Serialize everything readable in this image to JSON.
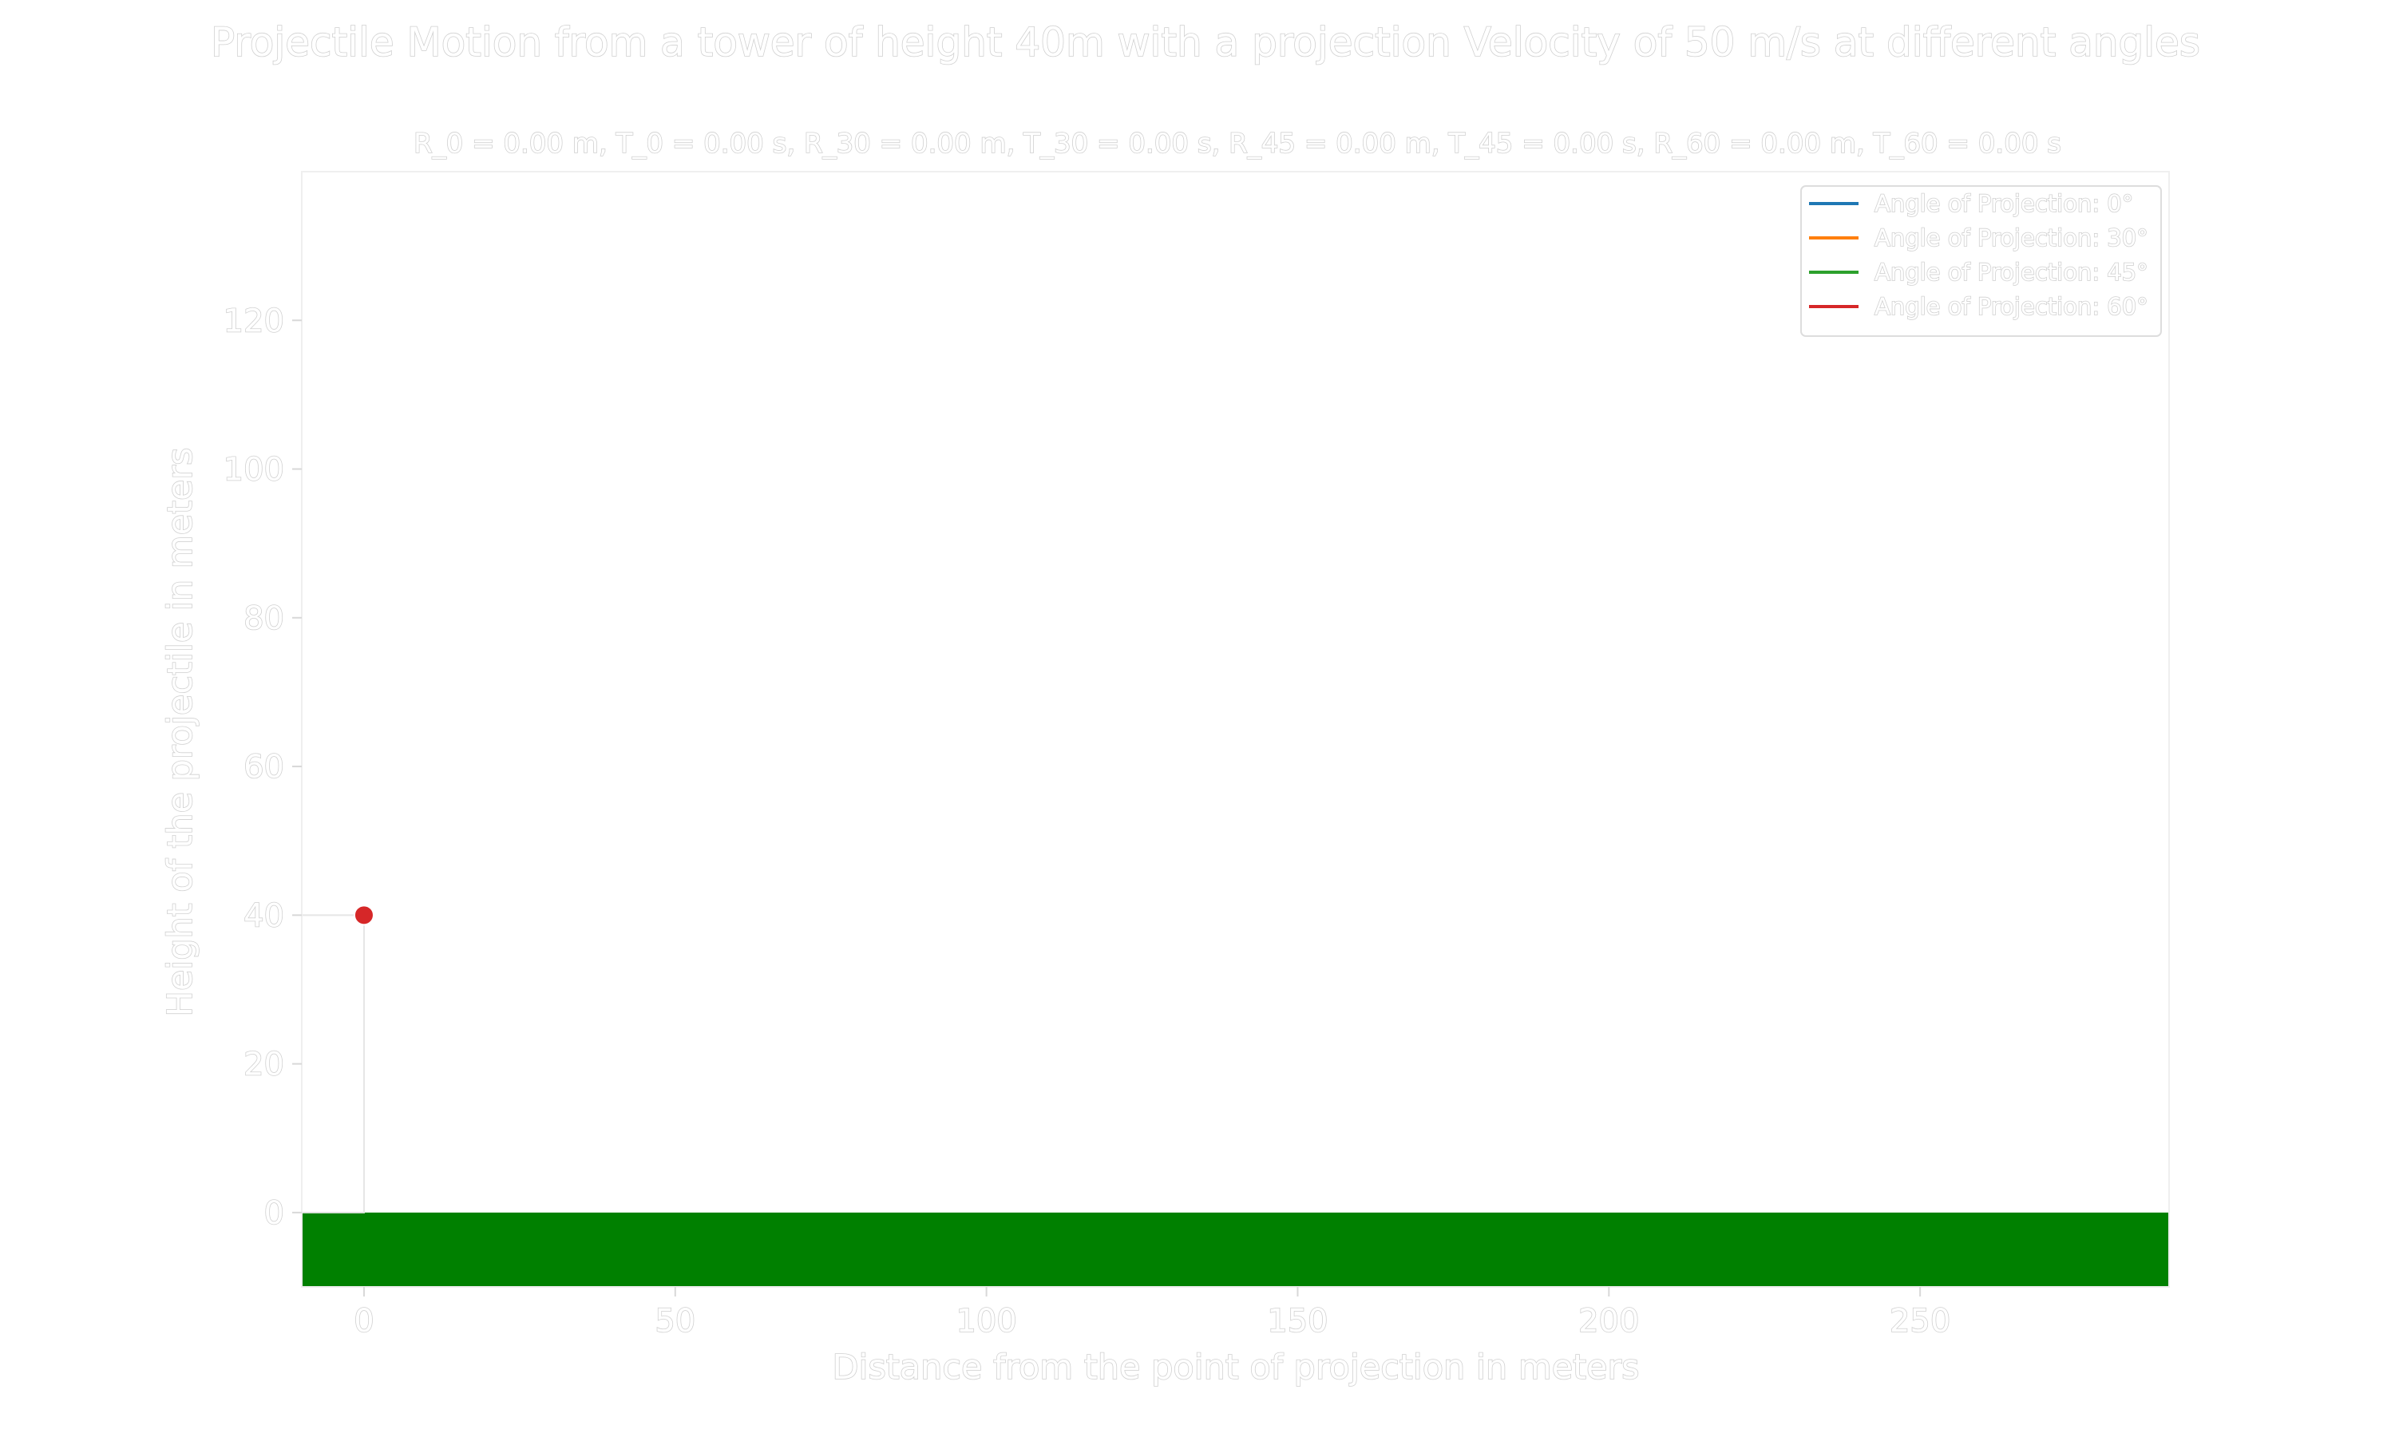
{
  "chart_data": {
    "type": "line",
    "title": "Projectile Motion from a tower of height 40m with a projection Velocity of 50 m/s at different angles",
    "subtitle": "R_0 = 0.00 m, T_0 = 0.00 s, R_30 = 0.00 m, T_30 = 0.00 s, R_45 = 0.00 m, T_45 = 0.00 s, R_60 = 0.00 m, T_60 = 0.00 s",
    "xlabel": "Distance from the point of projection in meters",
    "ylabel": "Height of the projectile in meters",
    "xlim": [
      -10,
      290
    ],
    "ylim": [
      -10,
      140
    ],
    "xticks": [
      0,
      50,
      100,
      150,
      200,
      250
    ],
    "yticks": [
      0,
      20,
      40,
      60,
      80,
      100,
      120
    ],
    "grid": false,
    "legend_position": "top-right",
    "series": [
      {
        "name": "Angle of Projection: 0°",
        "color": "#1f77b4",
        "x": [],
        "y": []
      },
      {
        "name": "Angle of Projection: 30°",
        "color": "#ff7f0e",
        "x": [],
        "y": []
      },
      {
        "name": "Angle of Projection: 45°",
        "color": "#2ca02c",
        "x": [],
        "y": []
      },
      {
        "name": "Angle of Projection: 60°",
        "color": "#d62728",
        "x": [],
        "y": []
      }
    ],
    "projectile_point": {
      "x": 0,
      "y": 40,
      "color": "#d62728"
    },
    "tower": {
      "x_left": -10,
      "x_right": 0,
      "height": 40
    },
    "ground": {
      "x_from": -10,
      "x_to": 290,
      "y_from": -10,
      "y_to": 0,
      "color": "#008000"
    }
  }
}
